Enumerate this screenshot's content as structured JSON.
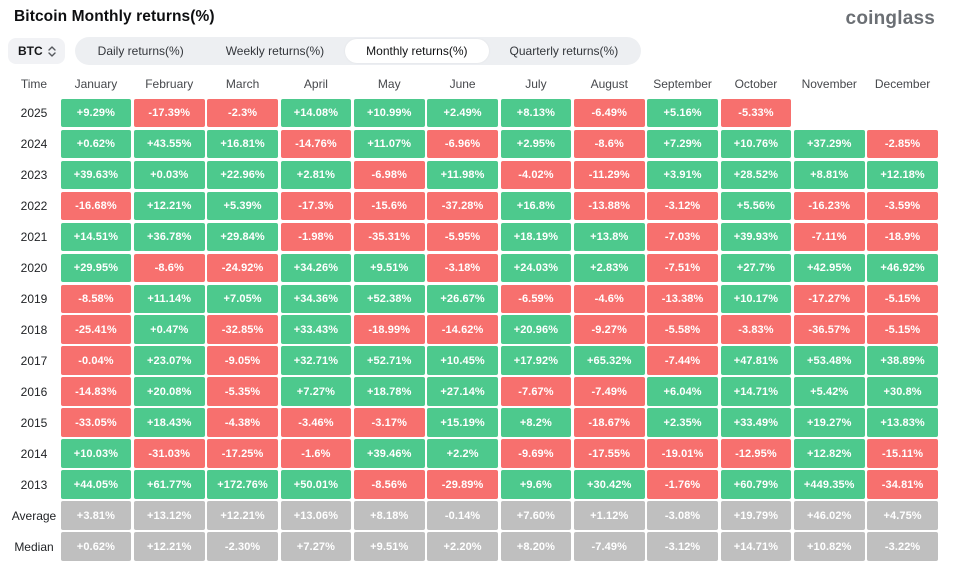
{
  "header": {
    "title": "Bitcoin Monthly returns(%)",
    "logo_text": "coinglass"
  },
  "toolbar": {
    "symbol_select": {
      "value": "BTC"
    },
    "tabs": [
      {
        "label": "Daily returns(%)",
        "active": false
      },
      {
        "label": "Weekly returns(%)",
        "active": false
      },
      {
        "label": "Monthly returns(%)",
        "active": true
      },
      {
        "label": "Quarterly returns(%)",
        "active": false
      }
    ]
  },
  "colors": {
    "positive": "#4dc98d",
    "negative": "#f7706e",
    "summary": "#bfbfbf"
  },
  "chart_data": {
    "type": "heatmap",
    "title": "Bitcoin Monthly returns(%)",
    "columns": [
      "Time",
      "January",
      "February",
      "March",
      "April",
      "May",
      "June",
      "July",
      "August",
      "September",
      "October",
      "November",
      "December"
    ],
    "rows": [
      {
        "label": "2025",
        "type": "year",
        "values": [
          "+9.29%",
          "-17.39%",
          "-2.3%",
          "+14.08%",
          "+10.99%",
          "+2.49%",
          "+8.13%",
          "-6.49%",
          "+5.16%",
          "-5.33%",
          "",
          ""
        ]
      },
      {
        "label": "2024",
        "type": "year",
        "values": [
          "+0.62%",
          "+43.55%",
          "+16.81%",
          "-14.76%",
          "+11.07%",
          "-6.96%",
          "+2.95%",
          "-8.6%",
          "+7.29%",
          "+10.76%",
          "+37.29%",
          "-2.85%"
        ]
      },
      {
        "label": "2023",
        "type": "year",
        "values": [
          "+39.63%",
          "+0.03%",
          "+22.96%",
          "+2.81%",
          "-6.98%",
          "+11.98%",
          "-4.02%",
          "-11.29%",
          "+3.91%",
          "+28.52%",
          "+8.81%",
          "+12.18%"
        ]
      },
      {
        "label": "2022",
        "type": "year",
        "values": [
          "-16.68%",
          "+12.21%",
          "+5.39%",
          "-17.3%",
          "-15.6%",
          "-37.28%",
          "+16.8%",
          "-13.88%",
          "-3.12%",
          "+5.56%",
          "-16.23%",
          "-3.59%"
        ]
      },
      {
        "label": "2021",
        "type": "year",
        "values": [
          "+14.51%",
          "+36.78%",
          "+29.84%",
          "-1.98%",
          "-35.31%",
          "-5.95%",
          "+18.19%",
          "+13.8%",
          "-7.03%",
          "+39.93%",
          "-7.11%",
          "-18.9%"
        ]
      },
      {
        "label": "2020",
        "type": "year",
        "values": [
          "+29.95%",
          "-8.6%",
          "-24.92%",
          "+34.26%",
          "+9.51%",
          "-3.18%",
          "+24.03%",
          "+2.83%",
          "-7.51%",
          "+27.7%",
          "+42.95%",
          "+46.92%"
        ]
      },
      {
        "label": "2019",
        "type": "year",
        "values": [
          "-8.58%",
          "+11.14%",
          "+7.05%",
          "+34.36%",
          "+52.38%",
          "+26.67%",
          "-6.59%",
          "-4.6%",
          "-13.38%",
          "+10.17%",
          "-17.27%",
          "-5.15%"
        ]
      },
      {
        "label": "2018",
        "type": "year",
        "values": [
          "-25.41%",
          "+0.47%",
          "-32.85%",
          "+33.43%",
          "-18.99%",
          "-14.62%",
          "+20.96%",
          "-9.27%",
          "-5.58%",
          "-3.83%",
          "-36.57%",
          "-5.15%"
        ]
      },
      {
        "label": "2017",
        "type": "year",
        "values": [
          "-0.04%",
          "+23.07%",
          "-9.05%",
          "+32.71%",
          "+52.71%",
          "+10.45%",
          "+17.92%",
          "+65.32%",
          "-7.44%",
          "+47.81%",
          "+53.48%",
          "+38.89%"
        ]
      },
      {
        "label": "2016",
        "type": "year",
        "values": [
          "-14.83%",
          "+20.08%",
          "-5.35%",
          "+7.27%",
          "+18.78%",
          "+27.14%",
          "-7.67%",
          "-7.49%",
          "+6.04%",
          "+14.71%",
          "+5.42%",
          "+30.8%"
        ]
      },
      {
        "label": "2015",
        "type": "year",
        "values": [
          "-33.05%",
          "+18.43%",
          "-4.38%",
          "-3.46%",
          "-3.17%",
          "+15.19%",
          "+8.2%",
          "-18.67%",
          "+2.35%",
          "+33.49%",
          "+19.27%",
          "+13.83%"
        ]
      },
      {
        "label": "2014",
        "type": "year",
        "values": [
          "+10.03%",
          "-31.03%",
          "-17.25%",
          "-1.6%",
          "+39.46%",
          "+2.2%",
          "-9.69%",
          "-17.55%",
          "-19.01%",
          "-12.95%",
          "+12.82%",
          "-15.11%"
        ]
      },
      {
        "label": "2013",
        "type": "year",
        "values": [
          "+44.05%",
          "+61.77%",
          "+172.76%",
          "+50.01%",
          "-8.56%",
          "-29.89%",
          "+9.6%",
          "+30.42%",
          "-1.76%",
          "+60.79%",
          "+449.35%",
          "-34.81%"
        ]
      },
      {
        "label": "Average",
        "type": "summary",
        "values": [
          "+3.81%",
          "+13.12%",
          "+12.21%",
          "+13.06%",
          "+8.18%",
          "-0.14%",
          "+7.60%",
          "+1.12%",
          "-3.08%",
          "+19.79%",
          "+46.02%",
          "+4.75%"
        ]
      },
      {
        "label": "Median",
        "type": "summary",
        "values": [
          "+0.62%",
          "+12.21%",
          "-2.30%",
          "+7.27%",
          "+9.51%",
          "+2.20%",
          "+8.20%",
          "-7.49%",
          "-3.12%",
          "+14.71%",
          "+10.82%",
          "-3.22%"
        ]
      }
    ]
  }
}
